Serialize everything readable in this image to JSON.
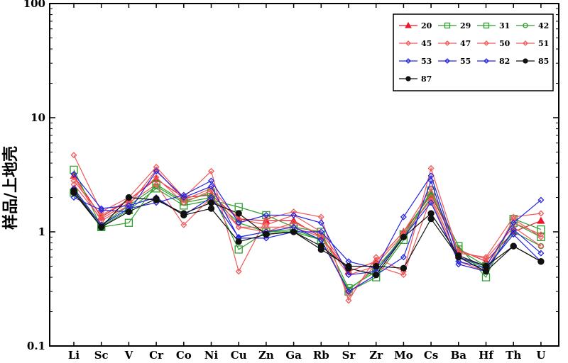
{
  "chart_data": {
    "type": "line",
    "title": "",
    "xlabel": "",
    "ylabel": "样品/上地壳",
    "yscale": "log",
    "ylim": [
      0.1,
      100
    ],
    "yticks": [
      0.1,
      1,
      10,
      100
    ],
    "ytick_labels": [
      "0.1",
      "1",
      "10",
      "100"
    ],
    "grid": false,
    "legend_position": "top-right",
    "categories": [
      "Li",
      "Sc",
      "V",
      "Cr",
      "Co",
      "Ni",
      "Cu",
      "Zn",
      "Ga",
      "Rb",
      "Sr",
      "Zr",
      "Mo",
      "Cs",
      "Ba",
      "Hf",
      "Th",
      "U"
    ],
    "series": [
      {
        "name": "20",
        "color": "#e8192c",
        "marker": "triangle",
        "filled": true,
        "values": [
          3.1,
          1.35,
          1.9,
          2.9,
          2.0,
          2.1,
          1.3,
          1.25,
          1.25,
          0.9,
          0.45,
          0.55,
          1.0,
          2.1,
          0.7,
          0.55,
          1.0,
          1.25
        ]
      },
      {
        "name": "29",
        "color": "#2e9e2e",
        "marker": "square",
        "filled": false,
        "values": [
          3.5,
          1.1,
          1.2,
          2.6,
          1.85,
          2.2,
          0.7,
          1.0,
          1.05,
          0.85,
          0.3,
          0.4,
          0.85,
          2.3,
          0.75,
          0.4,
          1.3,
          1.05
        ]
      },
      {
        "name": "31",
        "color": "#2e9e2e",
        "marker": "square",
        "filled": false,
        "values": [
          2.2,
          1.12,
          1.55,
          2.4,
          1.7,
          1.9,
          1.65,
          1.4,
          1.1,
          1.0,
          0.32,
          0.45,
          0.95,
          2.2,
          0.7,
          0.5,
          1.2,
          0.9
        ]
      },
      {
        "name": "42",
        "color": "#2e9e2e",
        "marker": "circle",
        "filled": false,
        "values": [
          2.3,
          1.15,
          1.7,
          2.5,
          1.8,
          2.0,
          1.2,
          1.0,
          1.0,
          0.85,
          0.31,
          0.48,
          0.9,
          2.0,
          0.6,
          0.48,
          1.0,
          0.75
        ]
      },
      {
        "name": "45",
        "color": "#f05a5a",
        "marker": "diamond",
        "filled": false,
        "values": [
          4.7,
          1.5,
          2.0,
          3.7,
          2.0,
          3.4,
          0.45,
          1.3,
          1.5,
          1.35,
          0.25,
          0.6,
          0.45,
          3.6,
          0.65,
          0.6,
          1.35,
          1.45
        ]
      },
      {
        "name": "47",
        "color": "#f05a5a",
        "marker": "diamond",
        "filled": false,
        "values": [
          2.6,
          1.3,
          1.8,
          2.6,
          1.15,
          2.0,
          1.1,
          1.1,
          1.1,
          0.9,
          0.42,
          0.5,
          0.42,
          2.0,
          0.6,
          0.5,
          1.2,
          0.95
        ]
      },
      {
        "name": "50",
        "color": "#f05a5a",
        "marker": "diamond",
        "filled": false,
        "values": [
          3.0,
          1.25,
          1.7,
          3.5,
          1.9,
          2.4,
          1.3,
          1.15,
          1.4,
          1.0,
          0.45,
          0.55,
          1.0,
          2.4,
          0.68,
          0.58,
          1.1,
          0.75
        ]
      },
      {
        "name": "51",
        "color": "#f05a5a",
        "marker": "diamond",
        "filled": false,
        "values": [
          2.8,
          1.4,
          1.9,
          3.0,
          1.8,
          2.3,
          1.1,
          1.0,
          1.2,
          0.95,
          0.28,
          0.52,
          0.95,
          1.9,
          0.55,
          0.45,
          1.3,
          0.9
        ]
      },
      {
        "name": "53",
        "color": "#2424e0",
        "marker": "diamond",
        "filled": false,
        "values": [
          2.0,
          1.55,
          1.5,
          3.4,
          2.0,
          2.5,
          0.88,
          0.88,
          1.0,
          1.0,
          0.55,
          0.48,
          1.35,
          3.1,
          0.6,
          0.5,
          1.2,
          1.9
        ]
      },
      {
        "name": "55",
        "color": "#2424e0",
        "marker": "diamond",
        "filled": false,
        "values": [
          3.2,
          1.6,
          1.7,
          2.0,
          1.4,
          2.0,
          0.9,
          1.0,
          1.1,
          0.85,
          0.3,
          0.42,
          0.6,
          2.8,
          0.52,
          0.45,
          1.05,
          0.65
        ]
      },
      {
        "name": "82",
        "color": "#2424e0",
        "marker": "diamond",
        "filled": false,
        "values": [
          2.4,
          1.15,
          1.6,
          1.8,
          2.1,
          2.8,
          1.2,
          1.4,
          1.4,
          1.2,
          0.42,
          0.45,
          0.9,
          1.8,
          0.55,
          0.48,
          0.95,
          0.55
        ]
      },
      {
        "name": "85",
        "color": "#111111",
        "marker": "circle",
        "filled": true,
        "values": [
          2.3,
          1.1,
          2.0,
          1.9,
          1.45,
          1.8,
          1.45,
          0.95,
          1.0,
          0.75,
          0.48,
          0.42,
          0.9,
          1.45,
          0.62,
          0.5,
          0.75,
          0.55
        ]
      },
      {
        "name": "87",
        "color": "#111111",
        "marker": "circle",
        "filled": true,
        "values": [
          2.2,
          1.1,
          1.5,
          1.95,
          1.4,
          1.6,
          0.82,
          0.95,
          1.0,
          0.7,
          0.5,
          0.5,
          0.48,
          1.3,
          0.6,
          0.45,
          0.75,
          0.55
        ]
      }
    ]
  }
}
